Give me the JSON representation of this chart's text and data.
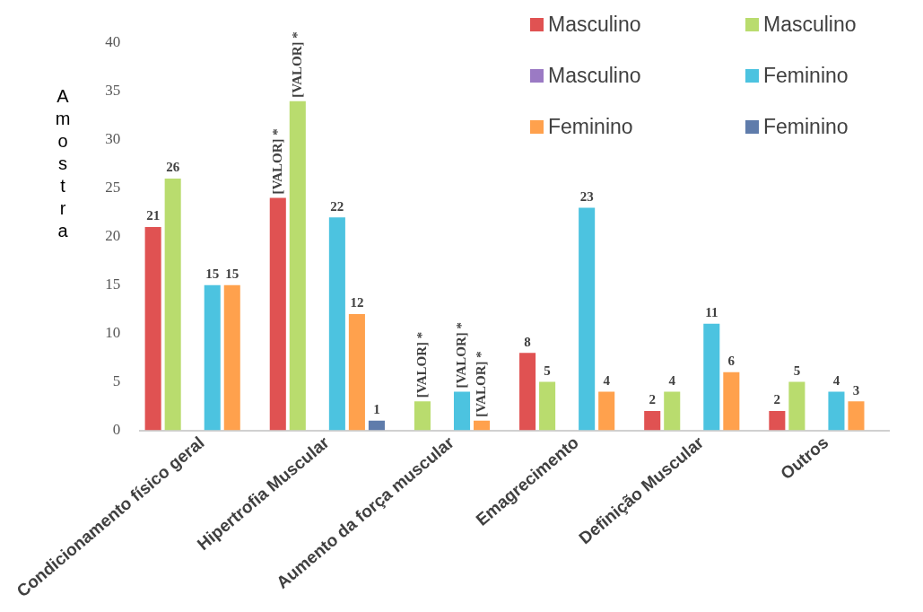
{
  "chart_data": {
    "type": "bar",
    "ylabel": "Amostra",
    "categories": [
      "Condicionamento físico geral",
      "Hipertrofia Muscular",
      "Aumento da força muscular",
      "Emagrecimento",
      "Definição Muscular",
      "Outros"
    ],
    "series": [
      {
        "name": "Masculino",
        "color": "#e05252",
        "values": [
          21,
          24,
          null,
          8,
          2,
          2
        ],
        "value_labels": [
          "21",
          "[VALOR] *",
          null,
          "8",
          "2",
          "2"
        ]
      },
      {
        "name": "Masculino",
        "color": "#b9dc6e",
        "values": [
          26,
          34,
          3,
          5,
          4,
          5
        ],
        "value_labels": [
          "26",
          "[VALOR] *",
          "[VALOR] *",
          "5",
          "4",
          "5"
        ]
      },
      {
        "name": "Masculino",
        "color": "#9b7ac4",
        "values": [
          null,
          null,
          null,
          null,
          null,
          null
        ]
      },
      {
        "name": "Feminino",
        "color": "#4cc3e0",
        "values": [
          15,
          22,
          4,
          23,
          11,
          4
        ],
        "value_labels": [
          "15",
          "22",
          "[VALOR] *",
          "23",
          "11",
          "4"
        ]
      },
      {
        "name": "Feminino",
        "color": "#ffa14d",
        "values": [
          15,
          12,
          1,
          4,
          6,
          3
        ],
        "value_labels": [
          "15",
          "12",
          "[VALOR] *",
          "4",
          "6",
          "3"
        ]
      },
      {
        "name": "Feminino",
        "color": "#5f7cab",
        "values": [
          null,
          1,
          null,
          null,
          null,
          null
        ],
        "value_labels": [
          null,
          "1",
          null,
          null,
          null,
          null
        ]
      }
    ],
    "ylim": [
      0,
      40
    ],
    "yticks": [
      0,
      5,
      10,
      15,
      20,
      25,
      30,
      35,
      40
    ],
    "grid": false,
    "legend": "top right"
  }
}
